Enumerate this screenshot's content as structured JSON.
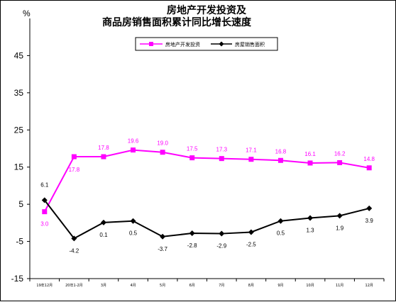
{
  "chart_data": {
    "type": "line",
    "title": [
      "房地产开发投资及",
      "商品房销售面积累计同比增长速度"
    ],
    "ylabel": "%",
    "ylim": [
      -15,
      55
    ],
    "yticks": [
      -15,
      -5,
      5,
      15,
      25,
      35,
      45
    ],
    "categories": [
      "19年12月",
      "20年1-2月",
      "3月",
      "4月",
      "5月",
      "6月",
      "7月",
      "8月",
      "9月",
      "10月",
      "11月",
      "12月"
    ],
    "series": [
      {
        "name": "房地产开发投资",
        "color": "#ff00ff",
        "marker": "square",
        "values": [
          3.0,
          17.8,
          17.8,
          19.6,
          19.0,
          17.5,
          17.3,
          17.1,
          16.8,
          16.1,
          16.2,
          14.8
        ],
        "labels": [
          "3.0",
          "17.8",
          "17.8",
          "19.6",
          "19.0",
          "17.5",
          "17.3",
          "17.1",
          "16.8",
          "16.1",
          "16.2",
          "14.8"
        ]
      },
      {
        "name": "房屋销售面积",
        "color": "#000000",
        "marker": "diamond",
        "values": [
          6.1,
          -4.2,
          0.1,
          0.5,
          -3.7,
          -2.8,
          -2.9,
          -2.5,
          0.5,
          1.3,
          1.9,
          3.9
        ],
        "labels": [
          "6.1",
          "-4.2",
          "0.1",
          "0.5",
          "-3.7",
          "-2.8",
          "-2.9",
          "-2.5",
          "0.5",
          "1.3",
          "1.9",
          "3.9"
        ]
      }
    ],
    "legend": "top",
    "grid": false
  }
}
